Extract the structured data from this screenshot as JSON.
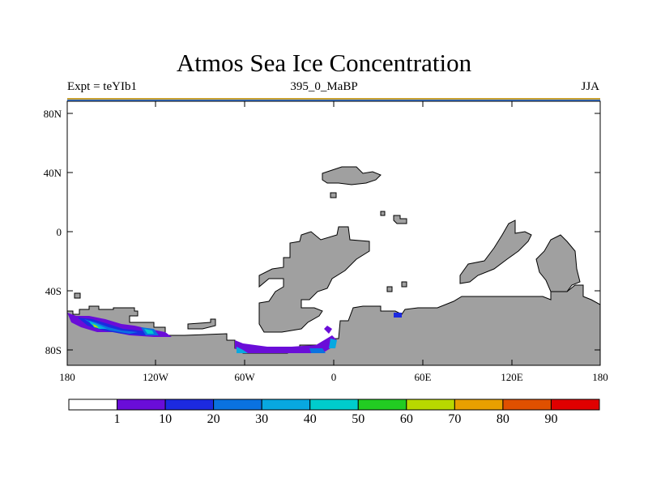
{
  "title": "Atmos Sea Ice Concentration",
  "subtitle_left": "Expt = teYIb1",
  "subtitle_center": "395_0_MaBP",
  "subtitle_right": "JJA",
  "map": {
    "lat_labels": [
      "80N",
      "40N",
      "0",
      "40S",
      "80S"
    ],
    "lon_labels": [
      "180",
      "120W",
      "60W",
      "0",
      "60E",
      "120E",
      "180"
    ],
    "land_color": "#a0a0a0",
    "ocean_color": "#ffffff"
  },
  "colorbar": {
    "levels": [
      "1",
      "10",
      "20",
      "30",
      "40",
      "50",
      "60",
      "70",
      "80",
      "90"
    ],
    "colors": [
      "#ffffff",
      "#6a0dd8",
      "#1c2ae0",
      "#0a72e0",
      "#08a8e0",
      "#00cccc",
      "#22cc22",
      "#b8d800",
      "#e8a000",
      "#e05000",
      "#e00000"
    ]
  }
}
